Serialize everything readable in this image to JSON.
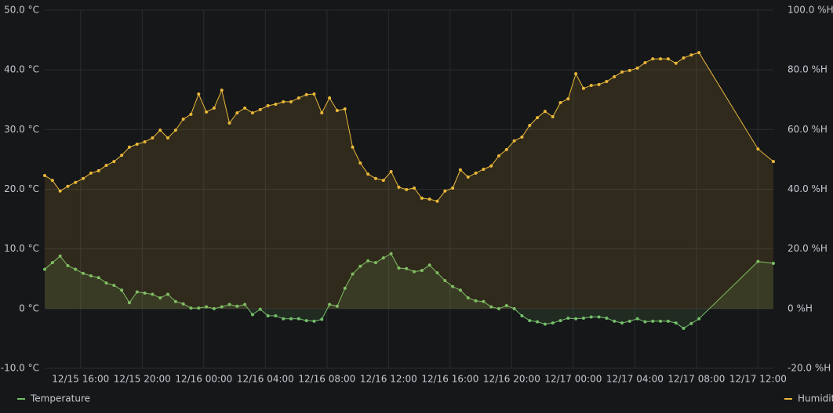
{
  "chart_data": {
    "type": "line",
    "x": [
      "12/15 13:40",
      "12/15 14:10",
      "12/15 14:40",
      "12/15 15:10",
      "12/15 15:40",
      "12/15 16:10",
      "12/15 16:40",
      "12/15 17:10",
      "12/15 17:40",
      "12/15 18:10",
      "12/15 18:40",
      "12/15 19:10",
      "12/15 19:40",
      "12/15 20:10",
      "12/15 20:40",
      "12/15 21:10",
      "12/15 21:40",
      "12/15 22:10",
      "12/15 22:40",
      "12/15 23:10",
      "12/15 23:40",
      "12/16 00:10",
      "12/16 00:40",
      "12/16 01:10",
      "12/16 01:40",
      "12/16 02:10",
      "12/16 02:40",
      "12/16 03:10",
      "12/16 03:40",
      "12/16 04:10",
      "12/16 04:40",
      "12/16 05:10",
      "12/16 05:40",
      "12/16 06:10",
      "12/16 06:40",
      "12/16 07:10",
      "12/16 07:40",
      "12/16 08:10",
      "12/16 08:40",
      "12/16 09:10",
      "12/16 09:40",
      "12/16 10:10",
      "12/16 10:40",
      "12/16 11:10",
      "12/16 11:40",
      "12/16 12:10",
      "12/16 12:40",
      "12/16 13:10",
      "12/16 13:40",
      "12/16 14:10",
      "12/16 14:40",
      "12/16 15:10",
      "12/16 15:40",
      "12/16 16:10",
      "12/16 16:40",
      "12/16 17:10",
      "12/16 17:40",
      "12/16 18:10",
      "12/16 18:40",
      "12/16 19:10",
      "12/16 19:40",
      "12/16 20:10",
      "12/16 20:40",
      "12/16 21:10",
      "12/16 21:40",
      "12/16 22:10",
      "12/16 22:40",
      "12/16 23:10",
      "12/16 23:40",
      "12/17 00:10",
      "12/17 00:40",
      "12/17 01:10",
      "12/17 01:40",
      "12/17 02:10",
      "12/17 02:40",
      "12/17 03:10",
      "12/17 03:40",
      "12/17 04:10",
      "12/17 04:40",
      "12/17 05:10",
      "12/17 05:40",
      "12/17 06:10",
      "12/17 06:40",
      "12/17 07:10",
      "12/17 07:40",
      "12/17 08:10",
      "12/17 12:00",
      "12/17 13:00"
    ],
    "xlim": [
      "12/15 13:40",
      "12/17 13:00"
    ],
    "xticks": [
      "12/15 16:00",
      "12/15 20:00",
      "12/16 00:00",
      "12/16 04:00",
      "12/16 08:00",
      "12/16 12:00",
      "12/16 16:00",
      "12/16 20:00",
      "12/17 00:00",
      "12/17 04:00",
      "12/17 08:00",
      "12/17 12:00"
    ],
    "ylim": [
      -10,
      50
    ],
    "yticks": [
      {
        "value": -10,
        "label": "-10.0 °C"
      },
      {
        "value": 0,
        "label": "0 °C"
      },
      {
        "value": 10,
        "label": "10.0 °C"
      },
      {
        "value": 20,
        "label": "20.0 °C"
      },
      {
        "value": 30,
        "label": "30.0 °C"
      },
      {
        "value": 40,
        "label": "40.0 °C"
      },
      {
        "value": 50,
        "label": "50.0 °C"
      }
    ],
    "y2lim": [
      -20,
      100
    ],
    "y2ticks": [
      {
        "value": -20,
        "label": "-20.0 %H"
      },
      {
        "value": 0,
        "label": "0 %H"
      },
      {
        "value": 20,
        "label": "20.0 %H"
      },
      {
        "value": 40,
        "label": "40.0 %H"
      },
      {
        "value": 60,
        "label": "60.0 %H"
      },
      {
        "value": 80,
        "label": "80.0 %H"
      },
      {
        "value": 100,
        "label": "100.0 %H"
      }
    ],
    "grid": true,
    "legend": "bottom",
    "series": [
      {
        "name": "Temperature",
        "color": "#73bf69",
        "axis": "y",
        "values": [
          6.6,
          7.7,
          8.8,
          7.2,
          6.6,
          5.9,
          5.5,
          5.2,
          4.3,
          3.9,
          3.1,
          1.0,
          2.8,
          2.6,
          2.4,
          1.8,
          2.4,
          1.2,
          0.8,
          0.1,
          0.1,
          0.3,
          0.0,
          0.3,
          0.7,
          0.4,
          0.7,
          -1.0,
          -0.1,
          -1.2,
          -1.2,
          -1.7,
          -1.7,
          -1.7,
          -2.0,
          -2.1,
          -1.8,
          0.7,
          0.4,
          3.4,
          5.8,
          7.1,
          8.0,
          7.7,
          8.5,
          9.2,
          6.8,
          6.7,
          6.2,
          6.4,
          7.3,
          6.0,
          4.7,
          3.7,
          3.1,
          1.8,
          1.3,
          1.2,
          0.3,
          0.0,
          0.5,
          0.0,
          -1.2,
          -2.0,
          -2.2,
          -2.6,
          -2.4,
          -2.0,
          -1.6,
          -1.7,
          -1.6,
          -1.4,
          -1.4,
          -1.6,
          -2.1,
          -2.4,
          -2.1,
          -1.7,
          -2.2,
          -2.1,
          -2.1,
          -2.1,
          -2.4,
          -3.3,
          -2.5,
          -1.7,
          7.9,
          7.6
        ]
      },
      {
        "name": "Humidity",
        "color": "#eab839",
        "axis": "y2",
        "values": [
          44.6,
          43.0,
          39.4,
          41.0,
          42.3,
          43.6,
          45.4,
          46.2,
          48.0,
          49.3,
          51.4,
          54.1,
          55.1,
          55.9,
          57.2,
          59.8,
          57.2,
          59.8,
          63.5,
          65.1,
          71.9,
          65.9,
          67.2,
          73.2,
          62.2,
          65.6,
          67.2,
          65.6,
          66.7,
          68.0,
          68.5,
          69.3,
          69.3,
          70.6,
          71.7,
          71.9,
          65.6,
          70.6,
          66.4,
          66.9,
          54.1,
          48.8,
          45.1,
          43.6,
          43.0,
          45.9,
          40.7,
          39.9,
          40.4,
          37.0,
          36.7,
          36.0,
          39.4,
          40.4,
          46.5,
          44.1,
          45.4,
          46.7,
          47.8,
          51.2,
          53.3,
          56.2,
          57.5,
          61.4,
          64.0,
          66.1,
          64.3,
          69.0,
          70.3,
          78.7,
          73.8,
          74.8,
          75.1,
          76.1,
          77.7,
          79.3,
          79.8,
          80.6,
          82.4,
          83.7,
          83.7,
          83.7,
          82.2,
          84.0,
          85.0,
          85.8,
          53.5,
          49.3
        ]
      }
    ]
  }
}
